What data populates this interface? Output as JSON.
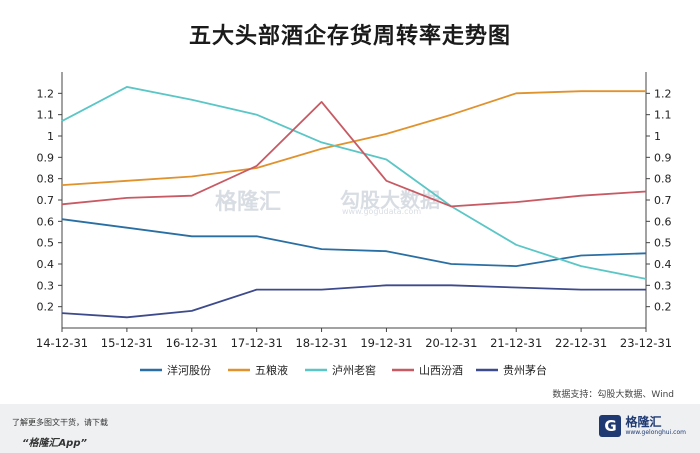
{
  "page": {
    "title": "五大头部酒企存货周转率走势图",
    "source": "数据支持：勾股大数据、Wind",
    "footer_note": "了解更多图文干货，请下载",
    "footer_app": "“格隆汇App”",
    "footer_brand": "格隆汇",
    "footer_url": "www.gelonghui.com",
    "watermark_a": "格隆汇",
    "watermark_b": "勾股大数据",
    "watermark_b_url": "www.gogudata.com"
  },
  "chart_data": {
    "type": "line",
    "title": "五大头部酒企存货周转率走势图",
    "categories": [
      "14-12-31",
      "15-12-31",
      "16-12-31",
      "17-12-31",
      "18-12-31",
      "19-12-31",
      "20-12-31",
      "21-12-31",
      "22-12-31",
      "23-12-31"
    ],
    "ylim": [
      0.1,
      1.3
    ],
    "yticks": [
      "0.2",
      "0.3",
      "0.4",
      "0.5",
      "0.6",
      "0.7",
      "0.8",
      "0.9",
      "1",
      "1.1",
      "1.2"
    ],
    "grid": false,
    "legend_position": "bottom",
    "series": [
      {
        "name": "洋河股份",
        "color": "#2a6fa3",
        "values": [
          0.61,
          0.57,
          0.53,
          0.53,
          0.47,
          0.46,
          0.4,
          0.39,
          0.44,
          0.45
        ]
      },
      {
        "name": "五粮液",
        "color": "#e0922d",
        "values": [
          0.77,
          0.79,
          0.81,
          0.85,
          0.94,
          1.01,
          1.1,
          1.2,
          1.21,
          1.21
        ]
      },
      {
        "name": "泸州老窖",
        "color": "#5bc6c6",
        "values": [
          1.07,
          1.23,
          1.17,
          1.1,
          0.97,
          0.89,
          0.67,
          0.49,
          0.39,
          0.33
        ]
      },
      {
        "name": "山西汾酒",
        "color": "#c85a63",
        "values": [
          0.68,
          0.71,
          0.72,
          0.86,
          1.16,
          0.79,
          0.67,
          0.69,
          0.72,
          0.74
        ]
      },
      {
        "name": "贵州茅台",
        "color": "#3d4a8c",
        "values": [
          0.17,
          0.15,
          0.18,
          0.28,
          0.28,
          0.3,
          0.3,
          0.29,
          0.28,
          0.28
        ]
      }
    ]
  }
}
